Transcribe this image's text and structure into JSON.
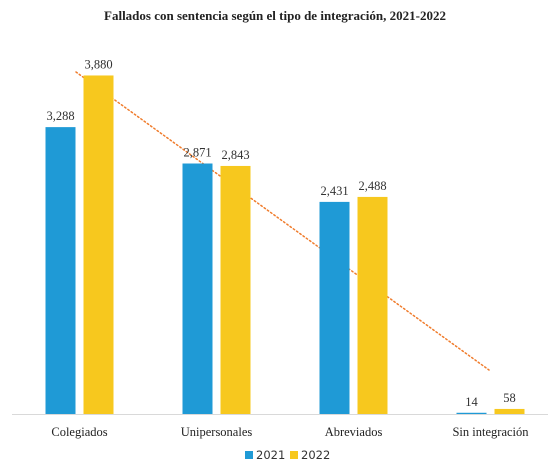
{
  "chart_data": {
    "type": "bar",
    "title": "Fallados con sentencia según el tipo de integración, 2021-2022",
    "categories": [
      "Colegiados",
      "Unipersonales",
      "Abreviados",
      "Sin integración"
    ],
    "series": [
      {
        "name": "2021",
        "color": "#1f9ad6",
        "values": [
          3288,
          2871,
          2431,
          14
        ],
        "labels": [
          "3,288",
          "2,871",
          "2,431",
          "14"
        ]
      },
      {
        "name": "2022",
        "color": "#f7c81e",
        "values": [
          3880,
          2843,
          2488,
          58
        ],
        "labels": [
          "3,880",
          "2,843",
          "2,488",
          "58"
        ]
      }
    ],
    "trendline": {
      "style": "dotted",
      "color": "#f07c2c",
      "start_category": "Colegiados",
      "end_category": "Sin integración"
    },
    "ylim": [
      0,
      4000
    ],
    "grid": false,
    "legend_position": "bottom",
    "xlabel": "",
    "ylabel": ""
  }
}
